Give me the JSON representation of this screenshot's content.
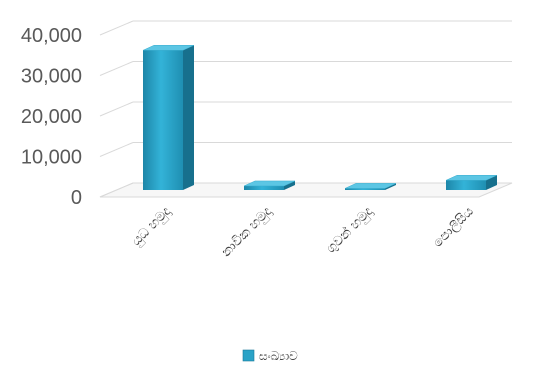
{
  "chart_data": {
    "type": "bar",
    "style": "3d-column",
    "categories": [
      "යුධ හමුදා",
      "නාවික හමුදා",
      "ගුවන් හමුදා",
      "පොලීසිය"
    ],
    "series": [
      {
        "name": "සංඛ්‍යාව",
        "values": [
          34500,
          1000,
          400,
          2400
        ],
        "color": "#2aa3c7"
      }
    ],
    "yticks": [
      "0",
      "10,000",
      "20,000",
      "30,000",
      "40,000"
    ],
    "ylim": [
      0,
      40000
    ],
    "grid": true,
    "legend": "bottom"
  }
}
